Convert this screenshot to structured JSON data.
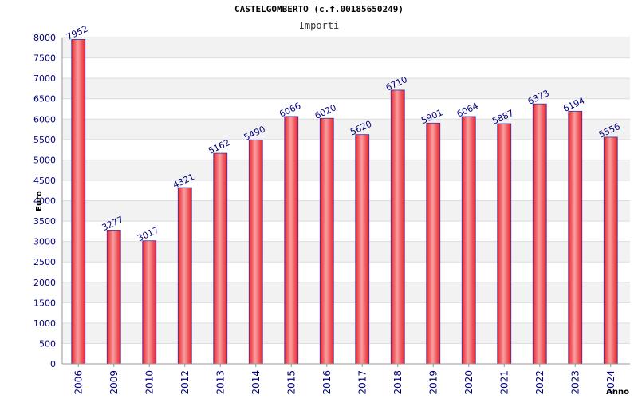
{
  "chart_data": {
    "type": "bar",
    "title": "CASTELGOMBERTO (c.f.00185650249)",
    "subtitle": "Importi",
    "xlabel": "Anno",
    "ylabel": "Euro",
    "categories": [
      "2006",
      "2009",
      "2010",
      "2012",
      "2013",
      "2014",
      "2015",
      "2016",
      "2017",
      "2018",
      "2019",
      "2020",
      "2021",
      "2022",
      "2023",
      "2024"
    ],
    "values": [
      7952,
      3277,
      3017,
      4321,
      5162,
      5490,
      6066,
      6020,
      5620,
      6710,
      5901,
      6064,
      5887,
      6373,
      6194,
      5556
    ],
    "ylim": [
      0,
      8000
    ],
    "yticks": [
      0,
      500,
      1000,
      1500,
      2000,
      2500,
      3000,
      3500,
      4000,
      4500,
      5000,
      5500,
      6000,
      6500,
      7000,
      7500,
      8000
    ],
    "grid": true,
    "colors": {
      "bar": "#e8202a",
      "bar_highlight": "#f8a0a0",
      "bar_edge": "#3333aa",
      "label": "#000080",
      "band": "#f2f2f2"
    }
  }
}
